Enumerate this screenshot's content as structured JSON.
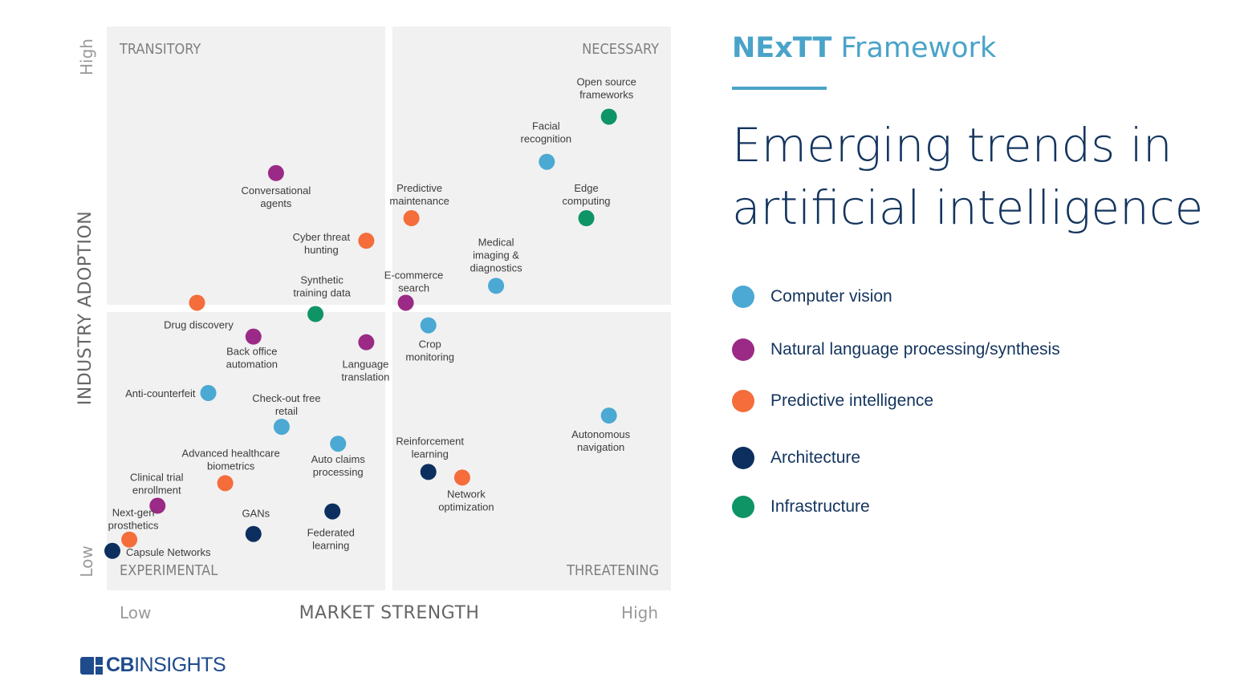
{
  "header": {
    "framework_strong": "NExTT",
    "framework_rest": " Framework",
    "title_line1": "Emerging trends in",
    "title_line2": "artificial intelligence"
  },
  "brand": {
    "strong": "CB",
    "rest": "INSIGHTS"
  },
  "colors": {
    "Computer vision": "#4ba9d3",
    "Natural language processing/synthesis": "#9b2a86",
    "Predictive intelligence": "#f46d3b",
    "Architecture": "#0d2f5f",
    "Infrastructure": "#0f9466"
  },
  "chart_data": {
    "type": "scatter",
    "xlabel": "MARKET STRENGTH",
    "ylabel": "INDUSTRY ADOPTION",
    "x_low": "Low",
    "x_high": "High",
    "y_low": "Low",
    "y_high": "High",
    "xlim": [
      0,
      100
    ],
    "ylim": [
      0,
      100
    ],
    "quadrants": {
      "top_left": "TRANSITORY",
      "top_right": "NECESSARY",
      "bottom_left": "EXPERIMENTAL",
      "bottom_right": "THREATENING"
    },
    "legend": [
      "Computer vision",
      "Natural language processing/synthesis",
      "Predictive intelligence",
      "Architecture",
      "Infrastructure"
    ],
    "points": [
      {
        "label": "Open source frameworks",
        "category": "Infrastructure",
        "x": 89,
        "y": 84
      },
      {
        "label": "Facial recognition",
        "category": "Computer vision",
        "x": 78,
        "y": 76
      },
      {
        "label": "Edge computing",
        "category": "Infrastructure",
        "x": 85,
        "y": 66
      },
      {
        "label": "Predictive maintenance",
        "category": "Predictive intelligence",
        "x": 54,
        "y": 66
      },
      {
        "label": "Conversational agents",
        "category": "Natural language processing/synthesis",
        "x": 30,
        "y": 74
      },
      {
        "label": "Cyber threat hunting",
        "category": "Predictive intelligence",
        "x": 46,
        "y": 62
      },
      {
        "label": "Medical imaging & diagnostics",
        "category": "Computer vision",
        "x": 69,
        "y": 54
      },
      {
        "label": "E-commerce search",
        "category": "Natural language processing/synthesis",
        "x": 53,
        "y": 51
      },
      {
        "label": "Synthetic training data",
        "category": "Infrastructure",
        "x": 37,
        "y": 49
      },
      {
        "label": "Drug discovery",
        "category": "Predictive intelligence",
        "x": 16,
        "y": 51
      },
      {
        "label": "Crop monitoring",
        "category": "Computer vision",
        "x": 57,
        "y": 47
      },
      {
        "label": "Back office automation",
        "category": "Natural language processing/synthesis",
        "x": 26,
        "y": 45
      },
      {
        "label": "Language translation",
        "category": "Natural language processing/synthesis",
        "x": 46,
        "y": 44
      },
      {
        "label": "Anti-counterfeit",
        "category": "Computer vision",
        "x": 18,
        "y": 35
      },
      {
        "label": "Check-out free retail",
        "category": "Computer vision",
        "x": 31,
        "y": 29
      },
      {
        "label": "Auto claims processing",
        "category": "Computer vision",
        "x": 41,
        "y": 26
      },
      {
        "label": "Autonomous navigation",
        "category": "Computer vision",
        "x": 89,
        "y": 31
      },
      {
        "label": "Reinforcement learning",
        "category": "Architecture",
        "x": 57,
        "y": 21
      },
      {
        "label": "Network optimization",
        "category": "Predictive intelligence",
        "x": 63,
        "y": 20
      },
      {
        "label": "Advanced healthcare biometrics",
        "category": "Predictive intelligence",
        "x": 21,
        "y": 19
      },
      {
        "label": "Clinical trial enrollment",
        "category": "Natural language processing/synthesis",
        "x": 9,
        "y": 15
      },
      {
        "label": "GANs",
        "category": "Architecture",
        "x": 26,
        "y": 10
      },
      {
        "label": "Federated learning",
        "category": "Architecture",
        "x": 40,
        "y": 14
      },
      {
        "label": "Next-gen prosthetics",
        "category": "Predictive intelligence",
        "x": 4,
        "y": 9
      },
      {
        "label": "Capsule Networks",
        "category": "Architecture",
        "x": 1,
        "y": 7
      }
    ]
  }
}
